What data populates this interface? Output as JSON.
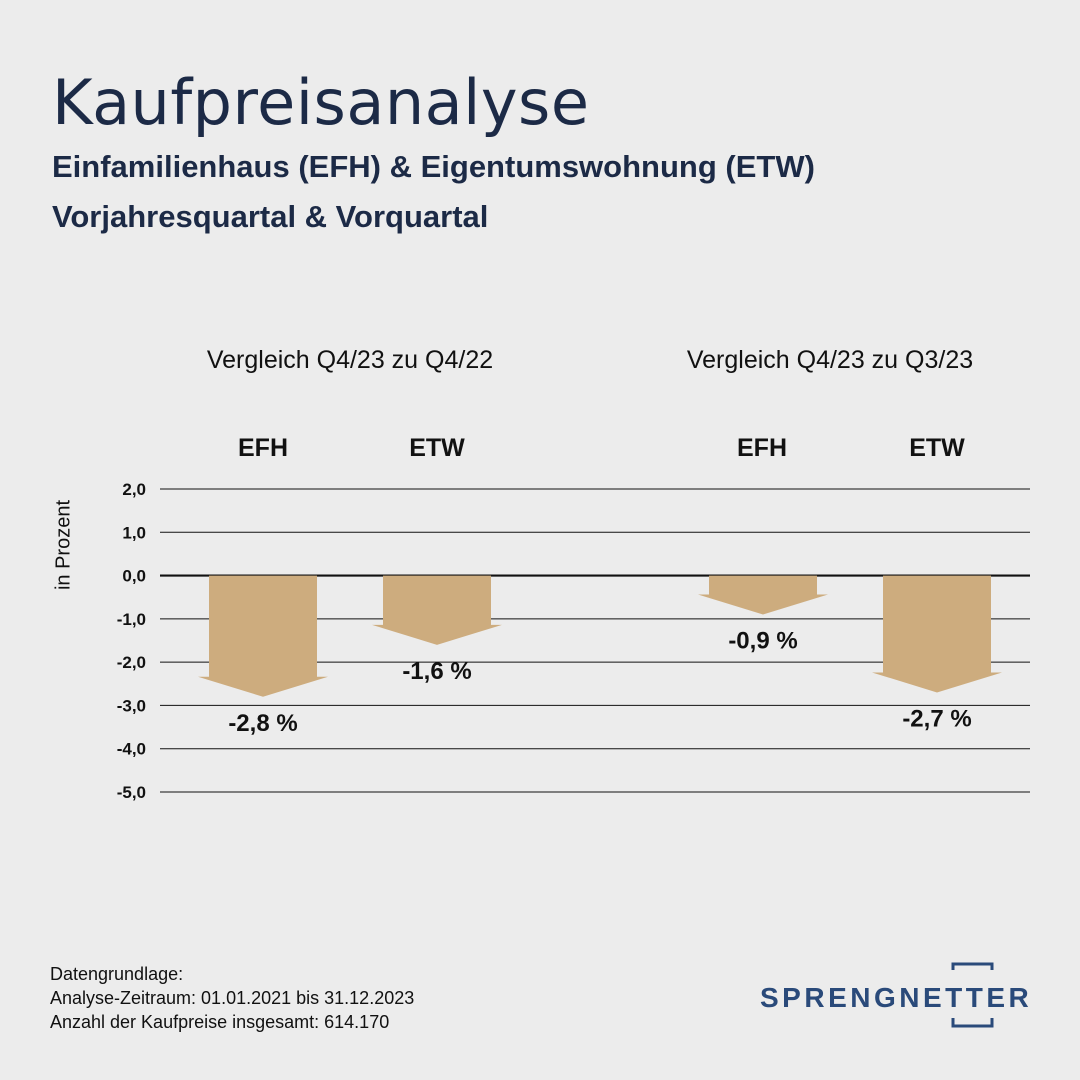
{
  "header": {
    "title": "Kaufpreisanalyse",
    "subtitle_line1": "Einfamilienhaus (EFH) & Eigentumswohnung (ETW)",
    "subtitle_line2": "Vorjahresquartal & Vorquartal"
  },
  "chart_data": {
    "type": "bar",
    "ylabel": "in Prozent",
    "ylim": [
      -5.0,
      2.0
    ],
    "yticks": [
      "2,0",
      "1,0",
      "0,0",
      "-1,0",
      "-2,0",
      "-3,0",
      "-4,0",
      "-5,0"
    ],
    "grid": true,
    "groups": [
      {
        "title": "Vergleich Q4/23 zu Q4/22",
        "categories": [
          "EFH",
          "ETW"
        ],
        "values": [
          -2.8,
          -1.6
        ],
        "labels": [
          "-2,8 %",
          "-1,6 %"
        ]
      },
      {
        "title": "Vergleich Q4/23 zu Q3/23",
        "categories": [
          "EFH",
          "ETW"
        ],
        "values": [
          -0.9,
          -2.7
        ],
        "labels": [
          "-0,9 %",
          "-2,7 %"
        ]
      }
    ],
    "bar_color": "#cdac7e"
  },
  "footer": {
    "line1": "Datengrundlage:",
    "line2": "Analyse-Zeitraum: 01.01.2021 bis 31.12.2023",
    "line3": "Anzahl der Kaufpreise insgesamt: 614.170"
  },
  "logo": {
    "text": "SPRENGNETTER",
    "color": "#2a4a7a"
  }
}
